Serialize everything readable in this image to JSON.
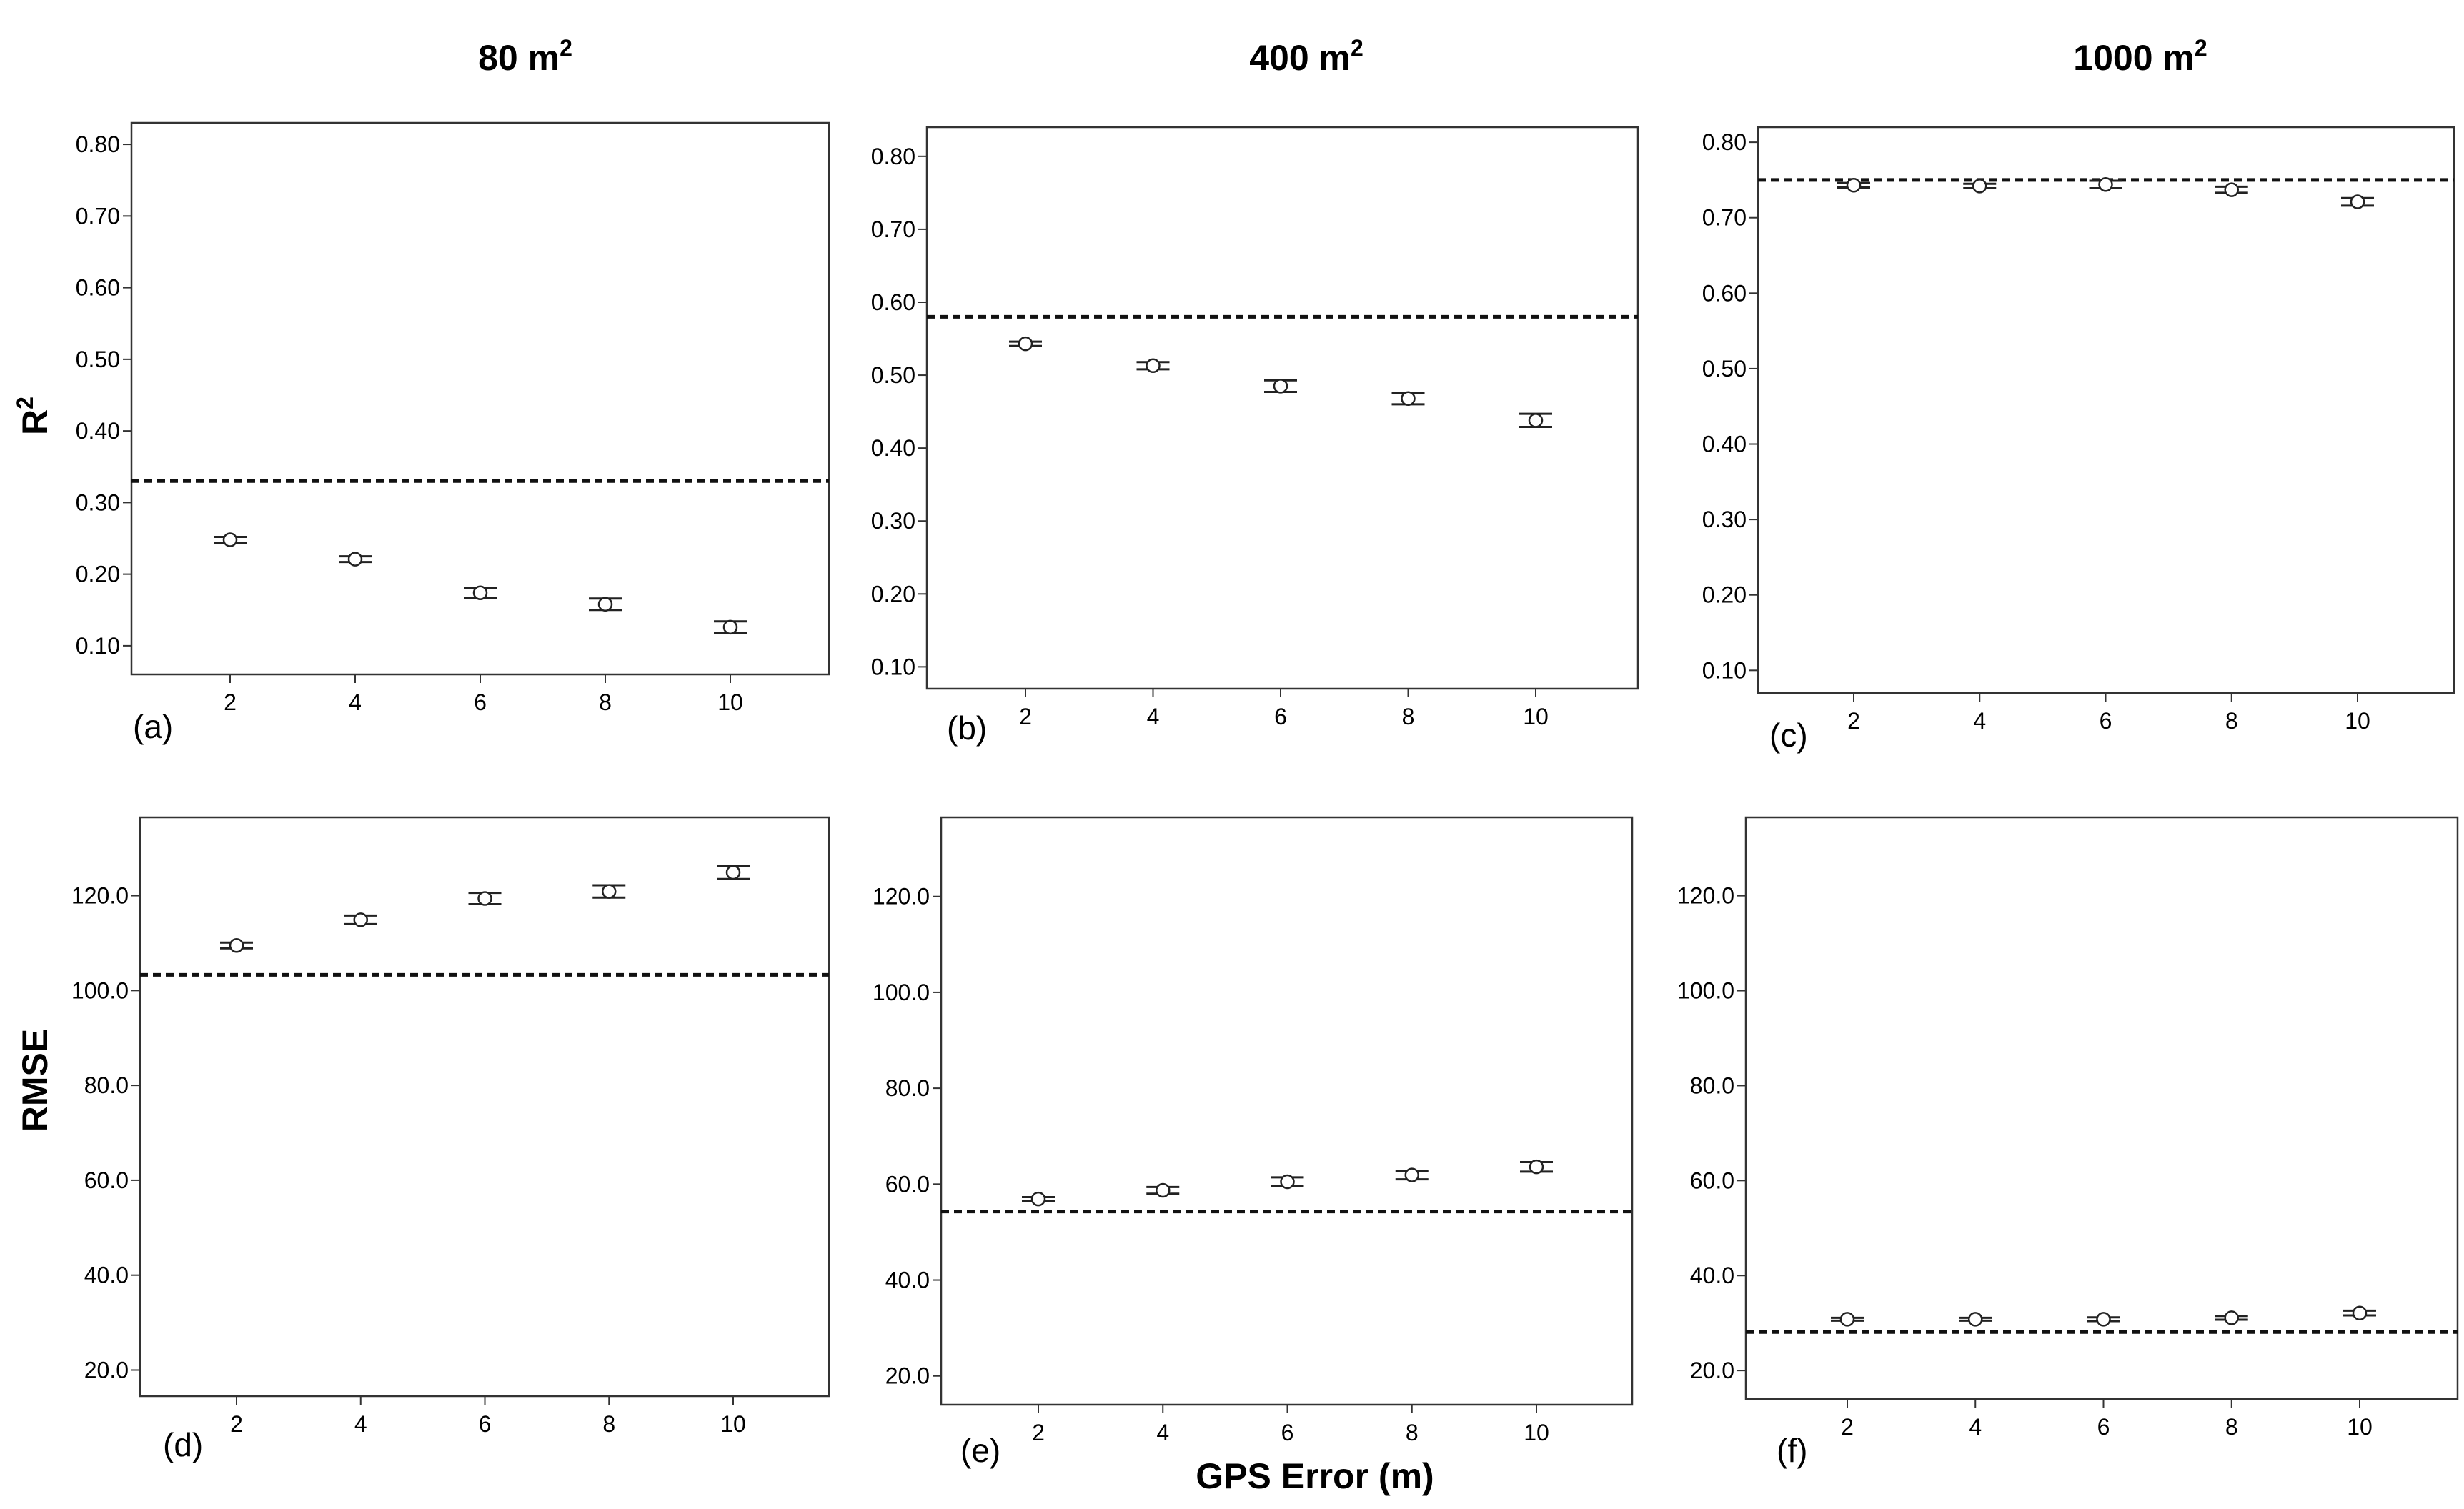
{
  "figure": {
    "column_titles": [
      {
        "base": "80 m",
        "sup": "2"
      },
      {
        "base": "400 m",
        "sup": "2"
      },
      {
        "base": "1000 m",
        "sup": "2"
      }
    ],
    "row_labels": [
      {
        "base": "R",
        "sup": "2"
      },
      {
        "base": "RMSE",
        "sup": ""
      }
    ],
    "xlabel": "GPS  Error (m)"
  },
  "chart_data": [
    {
      "type": "scatter",
      "panel": "(a)",
      "x": [
        2,
        4,
        6,
        8,
        10
      ],
      "y": [
        0.248,
        0.221,
        0.174,
        0.158,
        0.126
      ],
      "err": [
        0.004,
        0.004,
        0.007,
        0.008,
        0.008
      ],
      "reference": 0.33,
      "ylim": [
        0.06,
        0.83
      ],
      "yticks": [
        "0.10",
        "0.20",
        "0.30",
        "0.40",
        "0.50",
        "0.60",
        "0.70",
        "0.80"
      ],
      "xticks": [
        "2",
        "4",
        "6",
        "8",
        "10"
      ]
    },
    {
      "type": "scatter",
      "panel": "(b)",
      "x": [
        2,
        4,
        6,
        8,
        10
      ],
      "y": [
        0.543,
        0.513,
        0.485,
        0.468,
        0.438
      ],
      "err": [
        0.003,
        0.005,
        0.008,
        0.008,
        0.009
      ],
      "reference": 0.58,
      "ylim": [
        0.07,
        0.84
      ],
      "yticks": [
        "0.10",
        "0.20",
        "0.30",
        "0.40",
        "0.50",
        "0.60",
        "0.70",
        "0.80"
      ],
      "xticks": [
        "2",
        "4",
        "6",
        "8",
        "10"
      ]
    },
    {
      "type": "scatter",
      "panel": "(c)",
      "x": [
        2,
        4,
        6,
        8,
        10
      ],
      "y": [
        0.743,
        0.742,
        0.744,
        0.737,
        0.721
      ],
      "err": [
        0.003,
        0.003,
        0.005,
        0.004,
        0.005
      ],
      "reference": 0.75,
      "ylim": [
        0.07,
        0.82
      ],
      "yticks": [
        "0.10",
        "0.20",
        "0.30",
        "0.40",
        "0.50",
        "0.60",
        "0.70",
        "0.80"
      ],
      "xticks": [
        "2",
        "4",
        "6",
        "8",
        "10"
      ]
    },
    {
      "type": "scatter",
      "panel": "(d)",
      "x": [
        2,
        4,
        6,
        8,
        10
      ],
      "y": [
        109.5,
        114.9,
        119.4,
        120.9,
        124.9
      ],
      "err": [
        0.6,
        0.9,
        1.2,
        1.3,
        1.4
      ],
      "reference": 103.3,
      "ylim": [
        14.5,
        136.5
      ],
      "yticks": [
        "20.0",
        "40.0",
        "60.0",
        "80.0",
        "100.0",
        "120.0"
      ],
      "xticks": [
        "2",
        "4",
        "6",
        "8",
        "10"
      ]
    },
    {
      "type": "scatter",
      "panel": "(e)",
      "x": [
        2,
        4,
        6,
        8,
        10
      ],
      "y": [
        56.9,
        58.7,
        60.5,
        61.9,
        63.6
      ],
      "err": [
        0.4,
        0.7,
        0.9,
        0.9,
        1.0
      ],
      "reference": 54.3,
      "ylim": [
        14.0,
        136.5
      ],
      "yticks": [
        "20.0",
        "40.0",
        "60.0",
        "80.0",
        "100.0",
        "120.0"
      ],
      "xticks": [
        "2",
        "4",
        "6",
        "8",
        "10"
      ]
    },
    {
      "type": "scatter",
      "panel": "(f)",
      "x": [
        2,
        4,
        6,
        8,
        10
      ],
      "y": [
        30.8,
        30.8,
        30.8,
        31.1,
        32.1
      ],
      "err": [
        0.3,
        0.3,
        0.4,
        0.4,
        0.5
      ],
      "reference": 28.1,
      "ylim": [
        14.0,
        136.5
      ],
      "yticks": [
        "20.0",
        "40.0",
        "60.0",
        "80.0",
        "100.0",
        "120.0"
      ],
      "xticks": [
        "2",
        "4",
        "6",
        "8",
        "10"
      ]
    }
  ]
}
